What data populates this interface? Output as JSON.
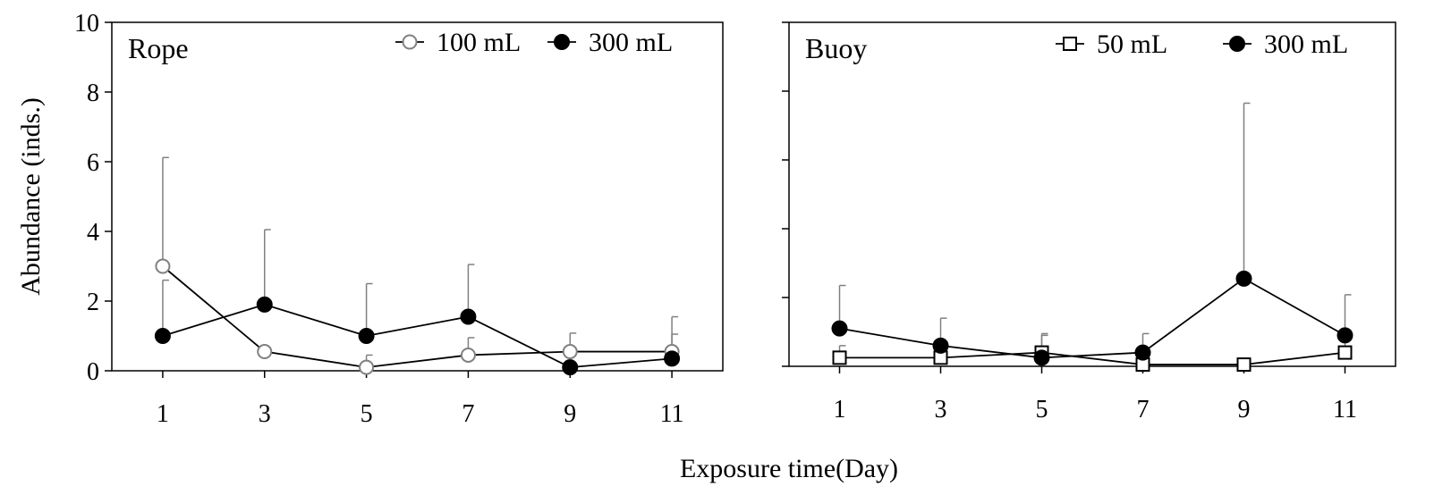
{
  "figure": {
    "xlabel": "Exposure time(Day)",
    "ylabel": "Abundance (inds.)"
  },
  "chart_data": [
    {
      "type": "line",
      "panel_label": "Rope",
      "x": [
        1,
        3,
        5,
        7,
        9,
        11
      ],
      "xticks": [
        "1",
        "3",
        "5",
        "7",
        "9",
        "11"
      ],
      "yticks": [
        "0",
        "2",
        "4",
        "6",
        "8",
        "10"
      ],
      "ylim": [
        0,
        10
      ],
      "xlim": [
        0,
        12
      ],
      "grid": false,
      "legend_position": "top-right",
      "series": [
        {
          "name": "100 mL",
          "marker": "open-circle",
          "color": "#808080",
          "values": [
            3.0,
            0.55,
            0.1,
            0.45,
            0.55,
            0.55
          ],
          "error_upper": [
            6.12,
            0.55,
            0.45,
            0.95,
            1.08,
            1.55
          ]
        },
        {
          "name": "300 mL",
          "marker": "filled-circle",
          "color": "#000000",
          "values": [
            1.0,
            1.9,
            1.0,
            1.55,
            0.1,
            0.35
          ],
          "error_upper": [
            2.6,
            4.05,
            2.5,
            3.05,
            0.1,
            1.05
          ]
        }
      ]
    },
    {
      "type": "line",
      "panel_label": "Buoy",
      "x": [
        1,
        3,
        5,
        7,
        9,
        11
      ],
      "xticks": [
        "1",
        "3",
        "5",
        "7",
        "9",
        "11"
      ],
      "ylim": [
        0,
        10
      ],
      "xlim": [
        0,
        12
      ],
      "grid": false,
      "legend_position": "top-right",
      "series": [
        {
          "name": "50 mL",
          "marker": "open-square",
          "color": "#000000",
          "values": [
            0.25,
            0.25,
            0.4,
            0.05,
            0.05,
            0.4
          ],
          "error_upper": [
            0.6,
            0.25,
            0.9,
            0.05,
            0.05,
            1.05
          ]
        },
        {
          "name": "300 mL",
          "marker": "filled-circle",
          "color": "#000000",
          "values": [
            1.1,
            0.6,
            0.25,
            0.4,
            2.55,
            0.9
          ],
          "error_upper": [
            2.35,
            1.4,
            0.95,
            0.95,
            7.65,
            2.08
          ]
        }
      ]
    }
  ]
}
